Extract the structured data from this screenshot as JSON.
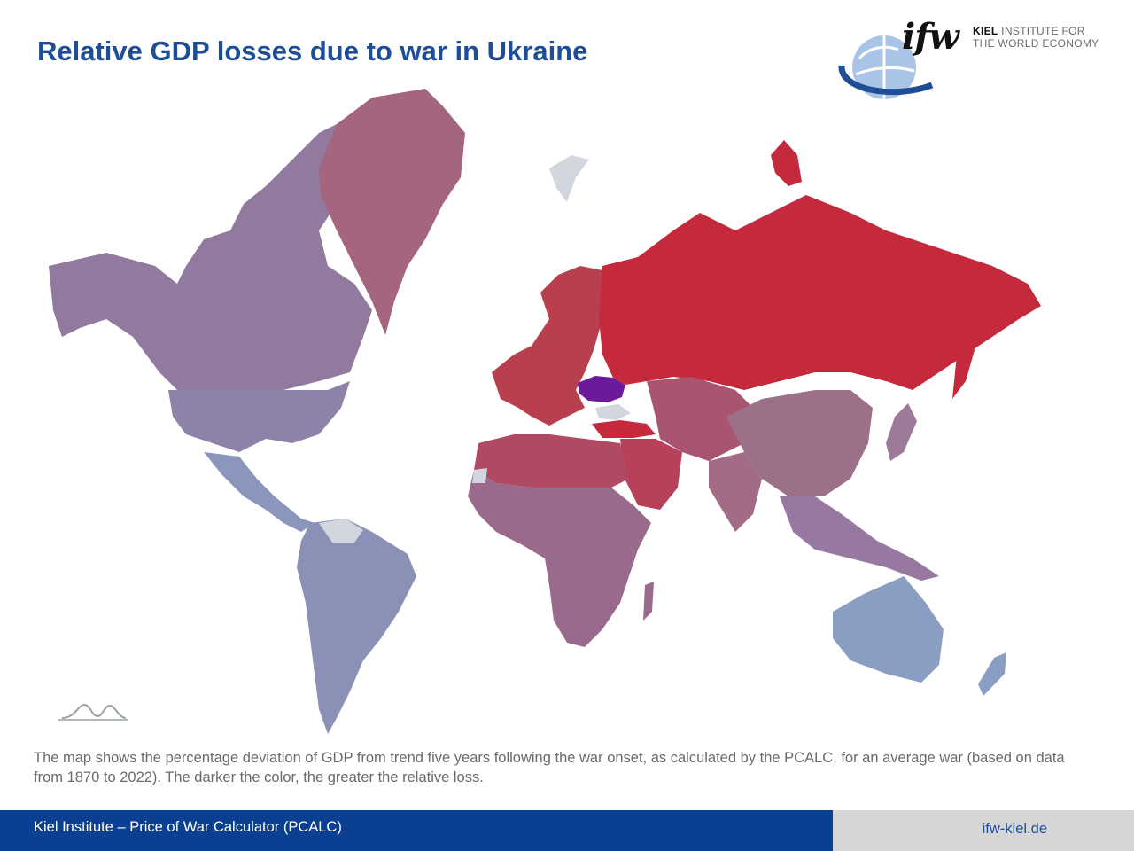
{
  "page": {
    "title": "Relative GDP losses due to war in Ukraine",
    "description": "The map shows the percentage deviation of GDP from trend five years following the war onset, as calculated by the PCALC, for an average war (based on data from 1870 to 2022). The darker the color, the greater the relative loss."
  },
  "logo": {
    "mark": "ifw",
    "line1_bold": "KIEL",
    "line1_rest": " INSTITUTE FOR",
    "line2": "THE WORLD ECONOMY"
  },
  "footer": {
    "left": "Kiel Institute – Price of War Calculator (PCALC)",
    "right": "ifw-kiel.de"
  },
  "map": {
    "colors": {
      "ukraine": "#6a1a9a",
      "highest_loss": "#c42a3c",
      "high_loss": "#b8404e",
      "medium_loss": "#a06a84",
      "lower_loss": "#8c7a9c",
      "low_loss": "#8a96bc",
      "no_data": "#d2d6de"
    },
    "icons": [
      "curve-icon",
      "globe-icon"
    ]
  }
}
